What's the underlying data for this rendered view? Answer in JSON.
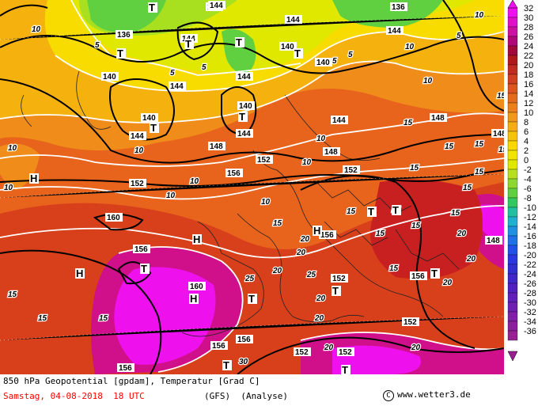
{
  "map": {
    "pressure_labels": [
      {
        "id": "T",
        "text": "T"
      },
      {
        "id": "H",
        "text": "H"
      }
    ],
    "geopotential_labels": [
      "136",
      "140",
      "144",
      "148",
      "152",
      "156",
      "160"
    ],
    "temperature_labels": [
      "5",
      "10",
      "15",
      "20",
      "25",
      "30"
    ],
    "colors": {
      "t_32": "#ee11ee",
      "t_28": "#d0108a",
      "t_24": "#c82020",
      "t_20": "#d8401c",
      "t_16": "#e8631c",
      "t_12": "#f08c1a",
      "t_8": "#f5b20e",
      "t_4": "#f8dc00",
      "t_0": "#e0e800",
      "t_m4": "#a8e020",
      "t_m8": "#60d040",
      "t_m12": "#30c8b0"
    }
  },
  "legend": {
    "ticks": [
      "32",
      "30",
      "28",
      "26",
      "24",
      "22",
      "20",
      "18",
      "16",
      "14",
      "12",
      "10",
      "8",
      "6",
      "4",
      "2",
      "0",
      "-2",
      "-4",
      "-6",
      "-8",
      "-10",
      "-12",
      "-14",
      "-16",
      "-18",
      "-20",
      "-22",
      "-24",
      "-26",
      "-28",
      "-30",
      "-32",
      "-34",
      "-36"
    ],
    "colors": [
      "#ee11ee",
      "#e010c8",
      "#cc10a0",
      "#b00878",
      "#a00a3a",
      "#b01a1a",
      "#c02c20",
      "#d04020",
      "#dc5420",
      "#e46a1e",
      "#ec801c",
      "#f0981a",
      "#f4ae14",
      "#f6c40c",
      "#f8d800",
      "#f0e400",
      "#e0e800",
      "#b8e020",
      "#8cd830",
      "#60d040",
      "#34c860",
      "#20c0a0",
      "#20b0d0",
      "#2090e0",
      "#2070e8",
      "#2050e8",
      "#2838e0",
      "#3030d0",
      "#4028c8",
      "#5020c0",
      "#6020b8",
      "#7020b0",
      "#8020a8",
      "#8c209c",
      "#982090"
    ]
  },
  "footer": {
    "title": "850 hPa Geopotential [gpdam], Temperatur [Grad C]",
    "date": "Samstag, 04-08-2018  18 UTC",
    "model": "(GFS)  (Analyse)",
    "credit": "www.wetter3.de",
    "copyright_symbol": "C"
  }
}
